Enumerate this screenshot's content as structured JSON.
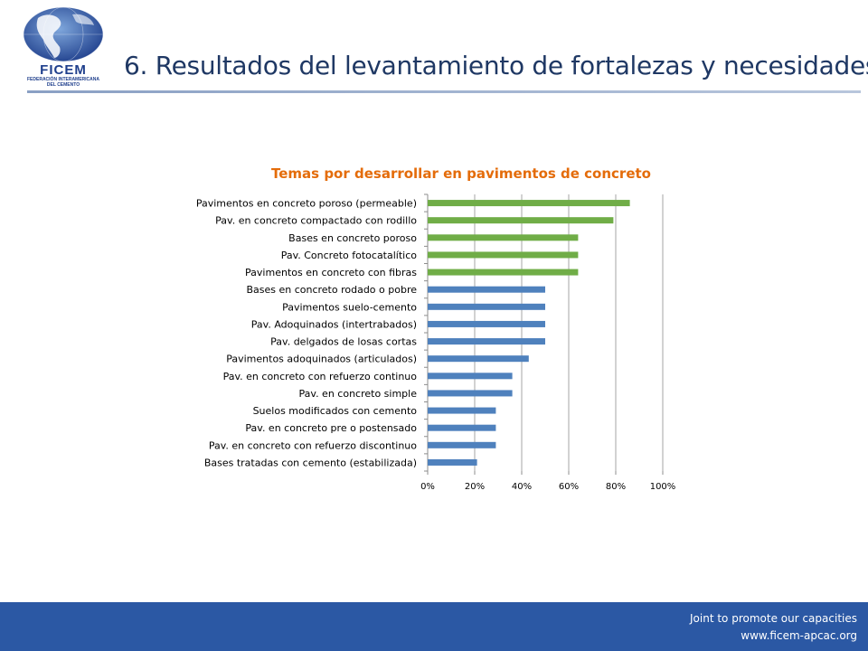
{
  "logo": {
    "name": "FICEM",
    "subtitle_line1": "FEDERACIÓN INTERAMERICANA",
    "subtitle_line2": "DEL CEMENTO"
  },
  "slide_title": "6. Resultados del levantamiento de fortalezas y necesidades",
  "colors": {
    "title": "#1f3864",
    "chart_title": "#e46c0a",
    "bar_blue": "#4f81bd",
    "bar_green": "#70ad47",
    "footer": "#2b58a4"
  },
  "footer": {
    "tagline": "Joint  to promote our capacities",
    "url": "www.ficem-apcac.org"
  },
  "chart_data": {
    "type": "bar",
    "orientation": "horizontal",
    "title": "Temas por desarrollar en pavimentos de concreto",
    "xlim": [
      0,
      100
    ],
    "x_ticks": [
      "0%",
      "20%",
      "40%",
      "60%",
      "80%",
      "100%"
    ],
    "grid": "vertical",
    "categories": [
      "Pavimentos en concreto poroso (permeable)",
      "Pav. en concreto compactado con rodillo",
      "Bases en concreto poroso",
      "Pav. Concreto fotocatalítico",
      "Pavimentos en concreto con fibras",
      "Bases en concreto rodado o pobre",
      "Pavimentos suelo-cemento",
      "Pav. Adoquinados (intertrabados)",
      "Pav. delgados de losas cortas",
      "Pavimentos adoquinados (articulados)",
      "Pav. en concreto con refuerzo continuo",
      "Pav. en concreto simple",
      "Suelos modificados con cemento",
      "Pav. en concreto pre o postensado",
      "Pav. en concreto con refuerzo discontinuo",
      "Bases tratadas con cemento (estabilizada)"
    ],
    "values": [
      86,
      79,
      64,
      64,
      64,
      50,
      50,
      50,
      50,
      43,
      36,
      36,
      29,
      29,
      29,
      21
    ],
    "bar_colors": [
      "green",
      "green",
      "green",
      "green",
      "green",
      "blue",
      "blue",
      "blue",
      "blue",
      "blue",
      "blue",
      "blue",
      "blue",
      "blue",
      "blue",
      "blue"
    ]
  }
}
